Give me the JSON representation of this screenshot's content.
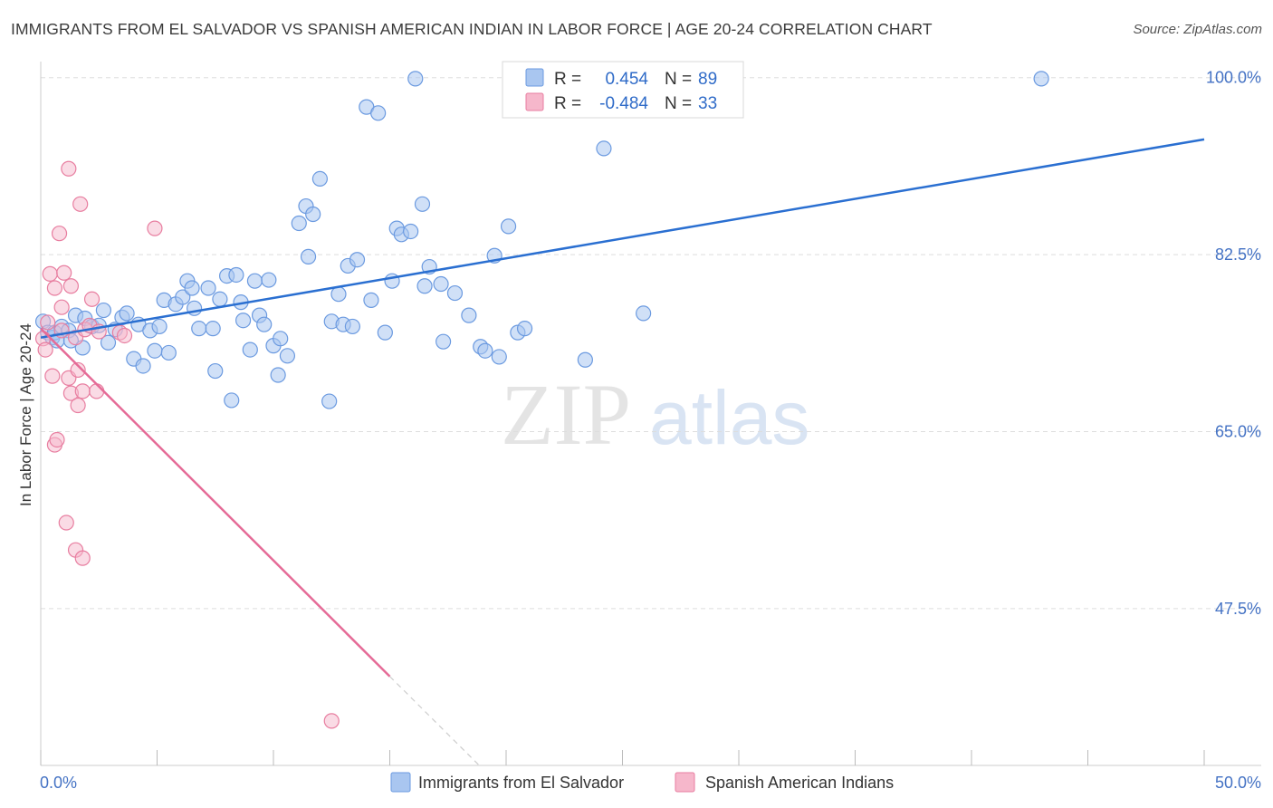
{
  "header": {
    "title": "IMMIGRANTS FROM EL SALVADOR VS SPANISH AMERICAN INDIAN IN LABOR FORCE | AGE 20-24 CORRELATION CHART",
    "source": "Source: ZipAtlas.com"
  },
  "watermark": {
    "zip": "ZIP",
    "atlas": "atlas"
  },
  "colors": {
    "blue_fill": "#a9c6f0",
    "blue_stroke": "#6b9ae0",
    "blue_line": "#2a6fd1",
    "pink_fill": "#f6b7cb",
    "pink_stroke": "#e87ea0",
    "pink_line": "#e56b97",
    "tick_text": "#4472c4",
    "grid": "#dddddd"
  },
  "chart_data": {
    "type": "scatter",
    "title": "IMMIGRANTS FROM EL SALVADOR VS SPANISH AMERICAN INDIAN IN LABOR FORCE | AGE 20-24 CORRELATION CHART",
    "xlabel": "",
    "ylabel": "In Labor Force | Age 20-24",
    "xlim": [
      0,
      50
    ],
    "ylim": [
      32,
      101.5
    ],
    "x_tick_labels": [
      "0.0%",
      "50.0%"
    ],
    "y_ticks": [
      47.5,
      65.0,
      82.5,
      100.0
    ],
    "y_tick_labels": [
      "47.5%",
      "65.0%",
      "82.5%",
      "100.0%"
    ],
    "grid": true,
    "legend_placement": "top-center",
    "legend_stats": [
      {
        "r_label": "R =",
        "r_value": "0.454",
        "n_label": "N =",
        "n_value": "89"
      },
      {
        "r_label": "R =",
        "r_value": "-0.484",
        "n_label": "N =",
        "n_value": "33"
      }
    ],
    "series": [
      {
        "name": "Immigrants from El Salvador",
        "color": "#a9c6f0",
        "trend": {
          "x": [
            0.0,
            50.0
          ],
          "y": [
            74.3,
            93.9
          ]
        },
        "points": [
          [
            0.1,
            75.9
          ],
          [
            0.3,
            74.8
          ],
          [
            0.5,
            74.3
          ],
          [
            0.6,
            74.8
          ],
          [
            0.7,
            74.0
          ],
          [
            0.9,
            75.4
          ],
          [
            1.2,
            75.0
          ],
          [
            1.3,
            74.0
          ],
          [
            1.5,
            76.5
          ],
          [
            1.8,
            73.3
          ],
          [
            1.9,
            76.2
          ],
          [
            2.2,
            75.4
          ],
          [
            2.5,
            75.5
          ],
          [
            2.7,
            77.0
          ],
          [
            2.9,
            73.8
          ],
          [
            3.2,
            75.1
          ],
          [
            3.5,
            76.3
          ],
          [
            3.7,
            76.7
          ],
          [
            4.0,
            72.2
          ],
          [
            4.2,
            75.6
          ],
          [
            4.4,
            71.5
          ],
          [
            4.7,
            75.0
          ],
          [
            4.9,
            73.0
          ],
          [
            5.1,
            75.4
          ],
          [
            5.3,
            78.0
          ],
          [
            5.5,
            72.8
          ],
          [
            5.8,
            77.6
          ],
          [
            6.1,
            78.3
          ],
          [
            6.3,
            79.9
          ],
          [
            6.5,
            79.2
          ],
          [
            6.6,
            77.2
          ],
          [
            6.8,
            75.2
          ],
          [
            7.2,
            79.2
          ],
          [
            7.4,
            75.2
          ],
          [
            7.5,
            71.0
          ],
          [
            7.7,
            78.1
          ],
          [
            8.0,
            80.4
          ],
          [
            8.2,
            68.1
          ],
          [
            8.4,
            80.5
          ],
          [
            8.6,
            77.8
          ],
          [
            8.7,
            76.0
          ],
          [
            9.0,
            73.1
          ],
          [
            9.2,
            79.9
          ],
          [
            9.4,
            76.5
          ],
          [
            9.6,
            75.6
          ],
          [
            9.8,
            80.0
          ],
          [
            10.0,
            73.5
          ],
          [
            10.2,
            70.6
          ],
          [
            10.3,
            74.2
          ],
          [
            10.6,
            72.5
          ],
          [
            11.1,
            85.6
          ],
          [
            11.4,
            87.3
          ],
          [
            11.5,
            82.3
          ],
          [
            11.7,
            86.5
          ],
          [
            12.0,
            90.0
          ],
          [
            12.4,
            68.0
          ],
          [
            12.5,
            75.9
          ],
          [
            12.8,
            78.6
          ],
          [
            13.0,
            75.6
          ],
          [
            13.2,
            81.4
          ],
          [
            13.4,
            75.4
          ],
          [
            13.6,
            82.0
          ],
          [
            14.0,
            97.1
          ],
          [
            14.2,
            78.0
          ],
          [
            14.5,
            96.5
          ],
          [
            14.8,
            74.8
          ],
          [
            15.1,
            79.9
          ],
          [
            15.3,
            85.1
          ],
          [
            15.5,
            84.5
          ],
          [
            15.9,
            84.8
          ],
          [
            16.1,
            99.9
          ],
          [
            16.4,
            87.5
          ],
          [
            16.5,
            79.4
          ],
          [
            16.7,
            81.3
          ],
          [
            17.2,
            79.6
          ],
          [
            17.3,
            73.9
          ],
          [
            17.8,
            78.7
          ],
          [
            18.4,
            76.5
          ],
          [
            18.9,
            73.4
          ],
          [
            19.1,
            73.0
          ],
          [
            19.5,
            82.4
          ],
          [
            19.7,
            72.4
          ],
          [
            20.1,
            85.3
          ],
          [
            20.5,
            74.8
          ],
          [
            20.8,
            75.2
          ],
          [
            23.4,
            72.1
          ],
          [
            24.2,
            93.0
          ],
          [
            25.9,
            76.7
          ],
          [
            43.0,
            99.9
          ]
        ]
      },
      {
        "name": "Spanish American Indians",
        "color": "#f6b7cb",
        "trend": {
          "x": [
            0.0,
            15.0
          ],
          "y": [
            75.2,
            40.8
          ]
        },
        "trend_dashed_extension": {
          "x": [
            15.0,
            19.5
          ],
          "y": [
            40.8,
            30.5
          ]
        },
        "points": [
          [
            0.1,
            74.2
          ],
          [
            0.2,
            73.1
          ],
          [
            0.3,
            75.8
          ],
          [
            0.4,
            80.6
          ],
          [
            0.5,
            70.5
          ],
          [
            0.6,
            79.2
          ],
          [
            0.6,
            63.7
          ],
          [
            0.7,
            64.2
          ],
          [
            0.8,
            84.6
          ],
          [
            0.9,
            77.3
          ],
          [
            0.9,
            75.0
          ],
          [
            1.0,
            80.7
          ],
          [
            1.1,
            56.0
          ],
          [
            1.2,
            70.3
          ],
          [
            1.2,
            91.0
          ],
          [
            1.3,
            79.4
          ],
          [
            1.3,
            68.8
          ],
          [
            1.5,
            74.3
          ],
          [
            1.5,
            53.3
          ],
          [
            1.6,
            67.6
          ],
          [
            1.6,
            71.1
          ],
          [
            1.7,
            87.5
          ],
          [
            1.8,
            52.5
          ],
          [
            1.8,
            69.0
          ],
          [
            1.9,
            75.1
          ],
          [
            2.1,
            75.5
          ],
          [
            2.2,
            78.1
          ],
          [
            2.4,
            69.0
          ],
          [
            2.5,
            74.9
          ],
          [
            3.4,
            74.8
          ],
          [
            3.6,
            74.5
          ],
          [
            4.9,
            85.1
          ],
          [
            12.5,
            36.4
          ]
        ]
      }
    ]
  }
}
